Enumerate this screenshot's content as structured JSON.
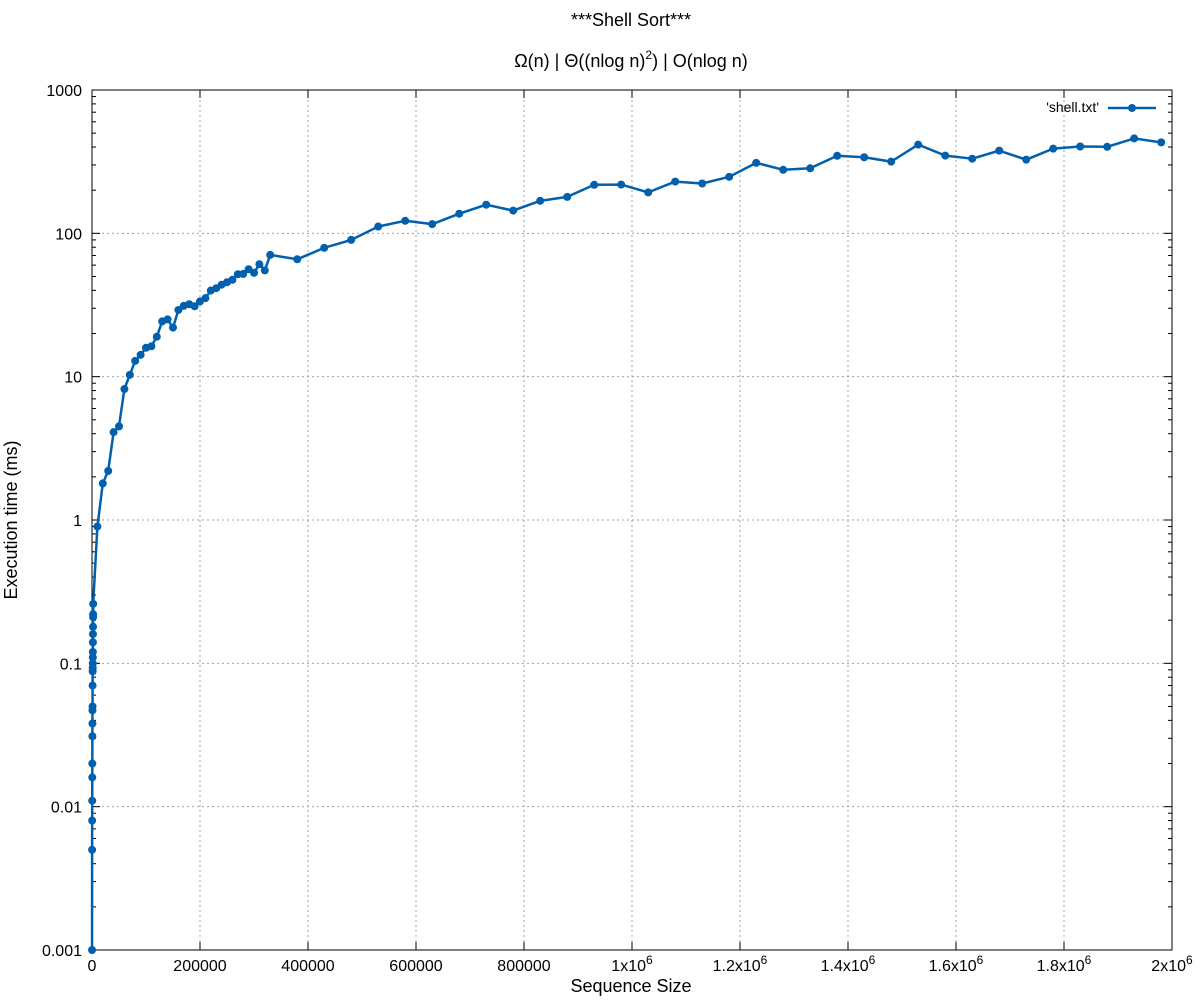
{
  "chart_data": {
    "type": "line",
    "title": "***Shell Sort***",
    "subtitle": {
      "omega": "Ω(n)",
      "sep1": " | ",
      "theta_pre": "Θ((nlog n)",
      "theta_sup": "2",
      "theta_post": ")",
      "sep2": " | ",
      "bigo": "O(nlog n)"
    },
    "xlabel": "Sequence Size",
    "ylabel": "Execution time (ms)",
    "x_scale": "linear",
    "y_scale": "log",
    "xlim": [
      0,
      2000000
    ],
    "ylim": [
      0.001,
      1000
    ],
    "grid": true,
    "legend_position": "top-right",
    "x_ticks": [
      {
        "value": 0,
        "label": "0"
      },
      {
        "value": 200000,
        "label": "200000"
      },
      {
        "value": 400000,
        "label": "400000"
      },
      {
        "value": 600000,
        "label": "600000"
      },
      {
        "value": 800000,
        "label": "800000"
      },
      {
        "value": 1000000,
        "base": "1x10",
        "exp": "6"
      },
      {
        "value": 1200000,
        "base": "1.2x10",
        "exp": "6"
      },
      {
        "value": 1400000,
        "base": "1.4x10",
        "exp": "6"
      },
      {
        "value": 1600000,
        "base": "1.6x10",
        "exp": "6"
      },
      {
        "value": 1800000,
        "base": "1.8x10",
        "exp": "6"
      },
      {
        "value": 2000000,
        "base": "2x10",
        "exp": "6"
      }
    ],
    "y_ticks": [
      {
        "value": 0.001,
        "label": "0.001"
      },
      {
        "value": 0.01,
        "label": "0.01"
      },
      {
        "value": 0.1,
        "label": "0.1"
      },
      {
        "value": 1,
        "label": "1"
      },
      {
        "value": 10,
        "label": "10"
      },
      {
        "value": 100,
        "label": "100"
      },
      {
        "value": 1000,
        "label": "1000"
      }
    ],
    "series": [
      {
        "name": "'shell.txt'",
        "color": "#0060ad",
        "points": [
          [
            100,
            0.001
          ],
          [
            200,
            0.005
          ],
          [
            300,
            0.008
          ],
          [
            400,
            0.011
          ],
          [
            500,
            0.016
          ],
          [
            600,
            0.02
          ],
          [
            700,
            0.031
          ],
          [
            800,
            0.038
          ],
          [
            900,
            0.047
          ],
          [
            1000,
            0.05
          ],
          [
            1100,
            0.07
          ],
          [
            1200,
            0.088
          ],
          [
            1300,
            0.093
          ],
          [
            1400,
            0.1
          ],
          [
            1500,
            0.11
          ],
          [
            1600,
            0.12
          ],
          [
            1700,
            0.14
          ],
          [
            1800,
            0.16
          ],
          [
            1900,
            0.18
          ],
          [
            2000,
            0.21
          ],
          [
            2100,
            0.22
          ],
          [
            2200,
            0.26
          ],
          [
            10000,
            0.9
          ],
          [
            20000,
            1.8
          ],
          [
            30000,
            2.2
          ],
          [
            40000,
            4.1
          ],
          [
            50000,
            4.5
          ],
          [
            60000,
            8.2
          ],
          [
            70000,
            10.3
          ],
          [
            80000,
            12.9
          ],
          [
            90000,
            14.2
          ],
          [
            100000,
            15.9
          ],
          [
            110000,
            16.3
          ],
          [
            120000,
            19.0
          ],
          [
            130000,
            24.3
          ],
          [
            140000,
            25.1
          ],
          [
            150000,
            22.0
          ],
          [
            160000,
            29.2
          ],
          [
            170000,
            31.2
          ],
          [
            180000,
            32.0
          ],
          [
            190000,
            31.0
          ],
          [
            200000,
            33.5
          ],
          [
            210000,
            35.3
          ],
          [
            220000,
            39.9
          ],
          [
            230000,
            41.4
          ],
          [
            240000,
            43.8
          ],
          [
            250000,
            45.6
          ],
          [
            260000,
            47.4
          ],
          [
            270000,
            51.8
          ],
          [
            280000,
            52.1
          ],
          [
            290000,
            56.2
          ],
          [
            300000,
            53.0
          ],
          [
            310000,
            60.9
          ],
          [
            320000,
            55.1
          ],
          [
            330000,
            70.7
          ],
          [
            380000,
            65.9
          ],
          [
            430000,
            79.2
          ],
          [
            480000,
            90.0
          ],
          [
            530000,
            111.5
          ],
          [
            580000,
            122.3
          ],
          [
            630000,
            115.9
          ],
          [
            680000,
            137.1
          ],
          [
            730000,
            158.4
          ],
          [
            780000,
            144.1
          ],
          [
            830000,
            168.5
          ],
          [
            880000,
            179.5
          ],
          [
            930000,
            218.1
          ],
          [
            980000,
            218.8
          ],
          [
            1030000,
            193.0
          ],
          [
            1080000,
            229.7
          ],
          [
            1130000,
            222.7
          ],
          [
            1180000,
            247.9
          ],
          [
            1230000,
            310.3
          ],
          [
            1280000,
            277.6
          ],
          [
            1330000,
            284.4
          ],
          [
            1380000,
            347.5
          ],
          [
            1430000,
            339.4
          ],
          [
            1480000,
            316.4
          ],
          [
            1530000,
            416.0
          ],
          [
            1580000,
            348.7
          ],
          [
            1630000,
            331.7
          ],
          [
            1680000,
            377.6
          ],
          [
            1730000,
            326.6
          ],
          [
            1780000,
            390.0
          ],
          [
            1830000,
            403.5
          ],
          [
            1880000,
            401.7
          ],
          [
            1930000,
            459.3
          ],
          [
            1980000,
            431.0
          ]
        ]
      }
    ]
  }
}
